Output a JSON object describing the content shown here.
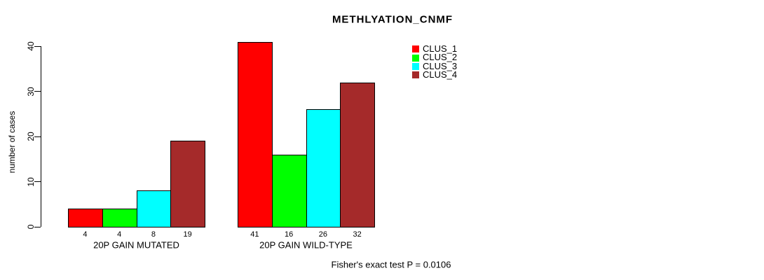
{
  "chart_data": {
    "type": "bar",
    "title": "METHLYATION_CNMF",
    "ylabel": "number of cases",
    "xlabel": "",
    "ylim": [
      0,
      40
    ],
    "yticks": [
      0,
      10,
      20,
      30,
      40
    ],
    "grid": false,
    "legend_position": "top-right",
    "bar_value_labels_shown": true,
    "categories": [
      "20P GAIN MUTATED",
      "20P GAIN WILD-TYPE"
    ],
    "series": [
      {
        "name": "CLUS_1",
        "color": "#FF0000",
        "values": [
          4,
          41
        ]
      },
      {
        "name": "CLUS_2",
        "color": "#00FF00",
        "values": [
          4,
          16
        ]
      },
      {
        "name": "CLUS_3",
        "color": "#00FFFF",
        "values": [
          8,
          26
        ]
      },
      {
        "name": "CLUS_4",
        "color": "#A52A2A",
        "values": [
          19,
          32
        ]
      }
    ],
    "annotation": "Fisher's exact test P = 0.0106",
    "axis_color": "#000000",
    "bar_border_color": "#000000"
  }
}
